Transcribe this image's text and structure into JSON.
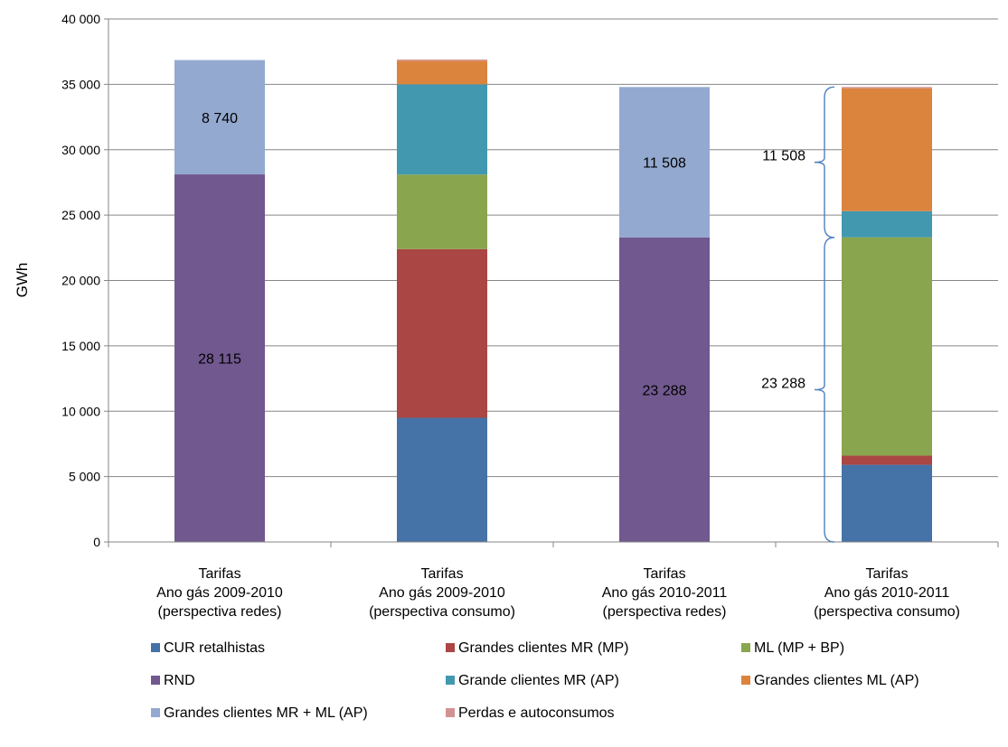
{
  "chart_data": {
    "type": "bar",
    "stacked": true,
    "ylabel": "GWh",
    "ylim": [
      0,
      40000
    ],
    "yticks": [
      0,
      5000,
      10000,
      15000,
      20000,
      25000,
      30000,
      35000,
      40000
    ],
    "ytick_labels": [
      "0",
      "5 000",
      "10 000",
      "15 000",
      "20 000",
      "25 000",
      "30 000",
      "35 000",
      "40 000"
    ],
    "grid": true,
    "legend_position": "bottom",
    "categories": [
      [
        "Tarifas",
        "Ano gás 2009-2010",
        "(perspectiva redes)"
      ],
      [
        "Tarifas",
        "Ano gás 2009-2010",
        "(perspectiva consumo)"
      ],
      [
        "Tarifas",
        "Ano gás 2010-2011",
        "(perspectiva redes)"
      ],
      [
        "Tarifas",
        "Ano gás 2010-2011",
        "(perspectiva consumo)"
      ]
    ],
    "series": [
      {
        "name": "CUR retalhistas",
        "color": "#4572A7",
        "values": [
          0,
          9500,
          0,
          5900
        ]
      },
      {
        "name": "Grandes clientes MR (MP)",
        "color": "#AA4643",
        "values": [
          0,
          12900,
          0,
          700
        ]
      },
      {
        "name": "ML (MP + BP)",
        "color": "#89A54E",
        "values": [
          0,
          5700,
          0,
          16700
        ]
      },
      {
        "name": "RND",
        "color": "#71588F",
        "values": [
          28115,
          0,
          23288,
          0
        ]
      },
      {
        "name": "Grande clientes MR (AP)",
        "color": "#4198AF",
        "values": [
          0,
          6900,
          0,
          2000
        ]
      },
      {
        "name": "Grandes clientes ML (AP)",
        "color": "#DB843D",
        "values": [
          0,
          1800,
          0,
          9400
        ]
      },
      {
        "name": "Grandes clientes MR + ML (AP)",
        "color": "#93A9CF",
        "values": [
          8740,
          0,
          11508,
          0
        ]
      },
      {
        "name": "Perdas e autoconsumos",
        "color": "#D19392",
        "values": [
          0,
          100,
          0,
          100
        ]
      }
    ],
    "data_labels": [
      {
        "category": 0,
        "series": 3,
        "text": "28 115"
      },
      {
        "category": 0,
        "series": 6,
        "text": "8 740"
      },
      {
        "category": 2,
        "series": 3,
        "text": "23 288"
      },
      {
        "category": 2,
        "series": 6,
        "text": "11 508"
      }
    ],
    "annotations": [
      {
        "text": "11 508",
        "from": 23288,
        "to": 34796
      },
      {
        "text": "23 288",
        "from": 0,
        "to": 23288
      }
    ]
  }
}
